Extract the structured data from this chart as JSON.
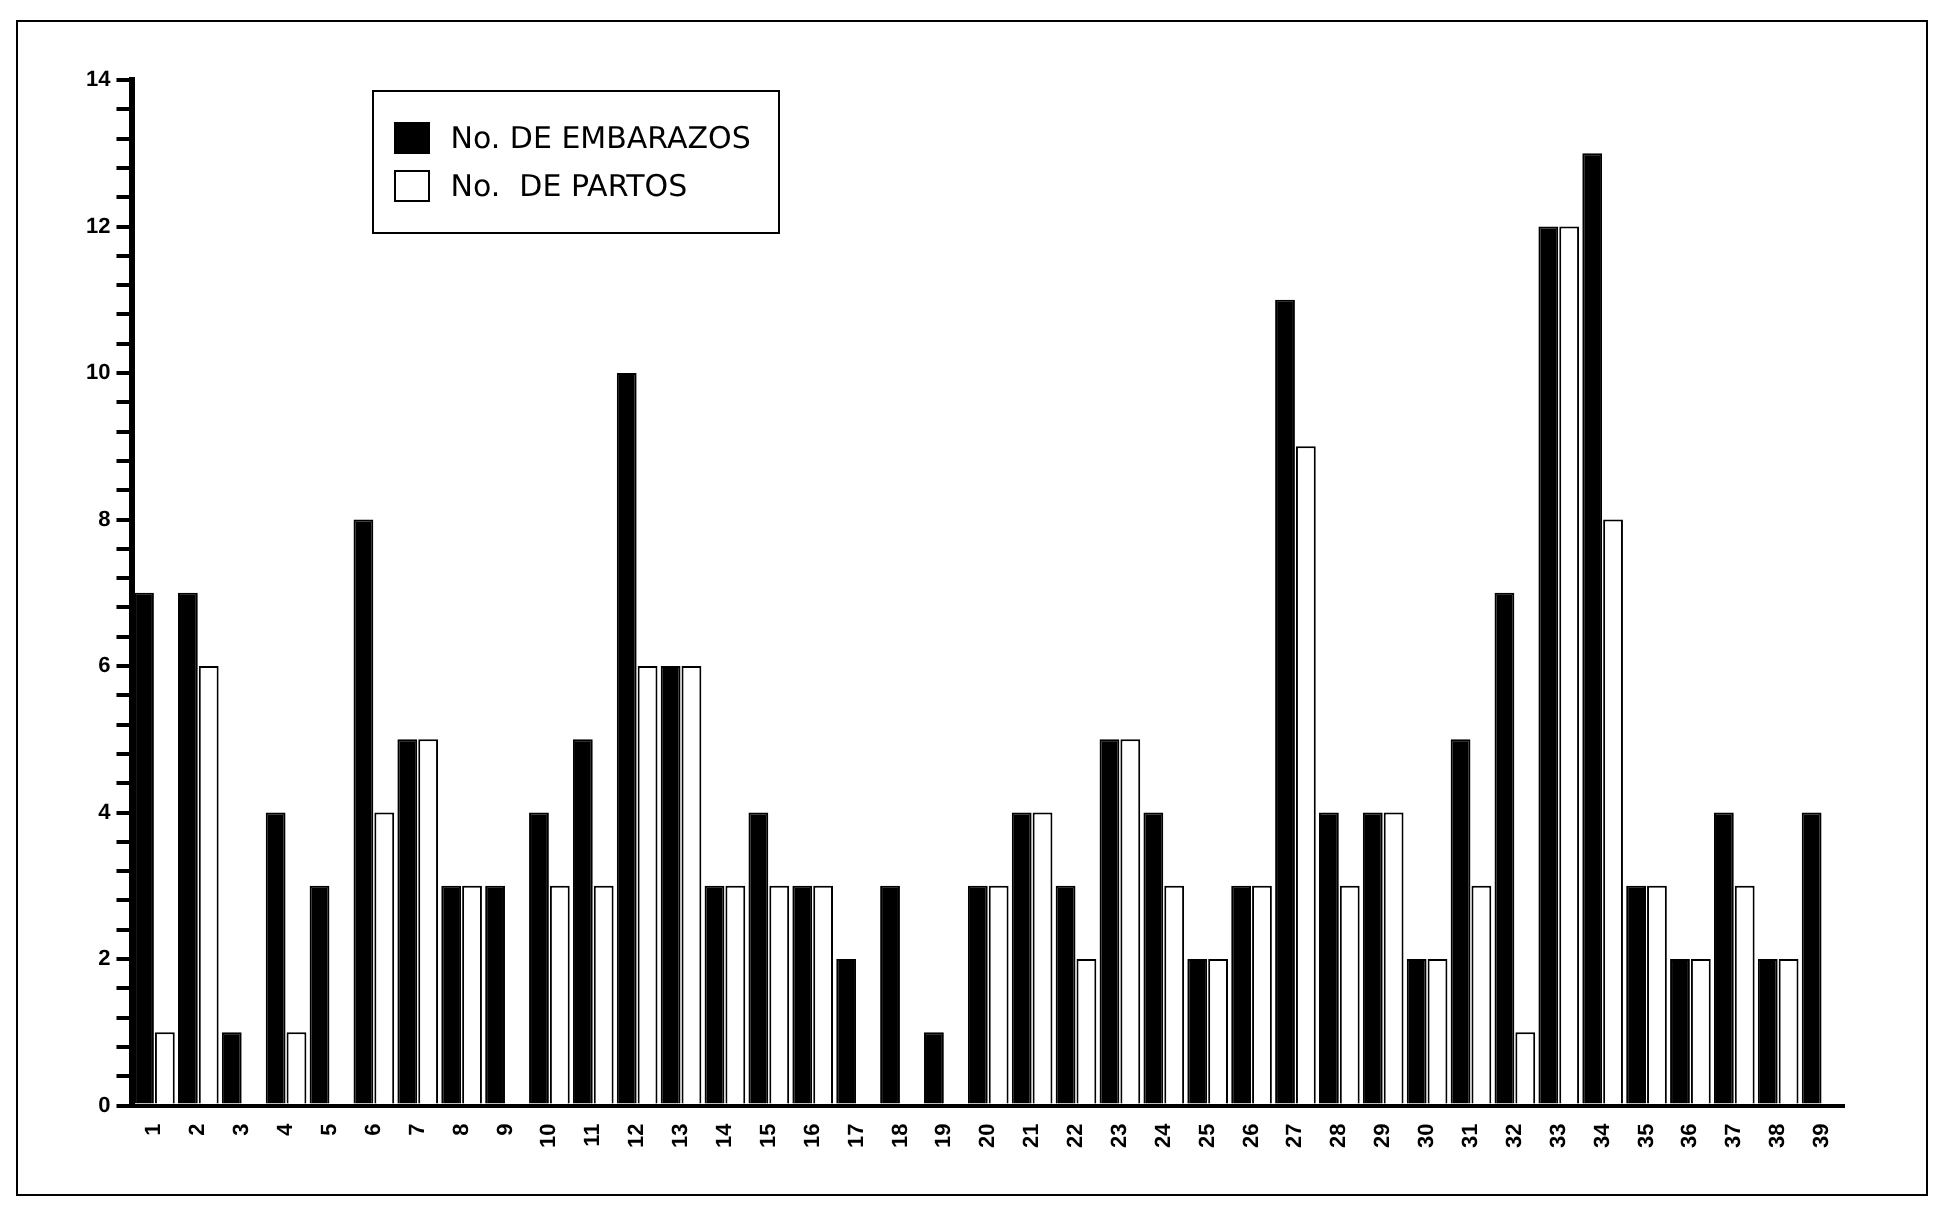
{
  "chart_data": {
    "type": "bar",
    "categories": [
      "1",
      "2",
      "3",
      "4",
      "5",
      "6",
      "7",
      "8",
      "9",
      "10",
      "11",
      "12",
      "13",
      "14",
      "15",
      "16",
      "17",
      "18",
      "19",
      "20",
      "21",
      "22",
      "23",
      "24",
      "25",
      "26",
      "27",
      "28",
      "29",
      "30",
      "31",
      "32",
      "33",
      "34",
      "35",
      "36",
      "37",
      "38",
      "39"
    ],
    "series": [
      {
        "name": "No. DE EMBARAZOS",
        "color": "#000000",
        "values": [
          7,
          7,
          1,
          4,
          3,
          8,
          5,
          3,
          3,
          4,
          5,
          10,
          6,
          3,
          4,
          3,
          2,
          3,
          1,
          3,
          4,
          3,
          5,
          4,
          2,
          3,
          11,
          4,
          4,
          2,
          5,
          7,
          12,
          13,
          3,
          2,
          4,
          2,
          4
        ]
      },
      {
        "name": "No.  DE PARTOS",
        "color": "#ffffff",
        "values": [
          1,
          6,
          0,
          1,
          0,
          4,
          5,
          3,
          0,
          3,
          3,
          6,
          6,
          3,
          3,
          3,
          0,
          0,
          0,
          3,
          4,
          2,
          5,
          3,
          2,
          3,
          9,
          3,
          4,
          2,
          3,
          1,
          12,
          8,
          3,
          2,
          3,
          2,
          0
        ]
      }
    ],
    "ylim": [
      0,
      14
    ],
    "yticks": [
      0,
      {
        "value": 0.4,
        "label": null
      },
      {
        "value": 0.8,
        "label": null
      },
      {
        "value": 1.2,
        "label": null
      },
      {
        "value": 1.6,
        "label": null
      },
      2,
      {
        "value": 2.4,
        "label": null
      },
      {
        "value": 2.8,
        "label": null
      },
      {
        "value": 3.2,
        "label": null
      },
      {
        "value": 3.6,
        "label": null
      },
      4,
      {
        "value": 4.4,
        "label": null
      },
      {
        "value": 4.8,
        "label": null
      },
      {
        "value": 5.2,
        "label": null
      },
      {
        "value": 5.6,
        "label": null
      },
      6,
      {
        "value": 6.4,
        "label": null
      },
      {
        "value": 6.8,
        "label": null
      },
      {
        "value": 7.2,
        "label": null
      },
      {
        "value": 7.6,
        "label": null
      },
      8,
      {
        "value": 8.4,
        "label": null
      },
      {
        "value": 8.8,
        "label": null
      },
      {
        "value": 9.2,
        "label": null
      },
      {
        "value": 9.6,
        "label": null
      },
      10,
      {
        "value": 10.4,
        "label": null
      },
      {
        "value": 10.8,
        "label": null
      },
      {
        "value": 11.2,
        "label": null
      },
      {
        "value": 11.6,
        "label": null
      },
      12,
      {
        "value": 12.4,
        "label": null
      },
      {
        "value": 12.8,
        "label": null
      },
      {
        "value": 13.2,
        "label": null
      },
      {
        "value": 13.6,
        "label": null
      },
      14
    ],
    "grid": false,
    "legend": "top left"
  }
}
